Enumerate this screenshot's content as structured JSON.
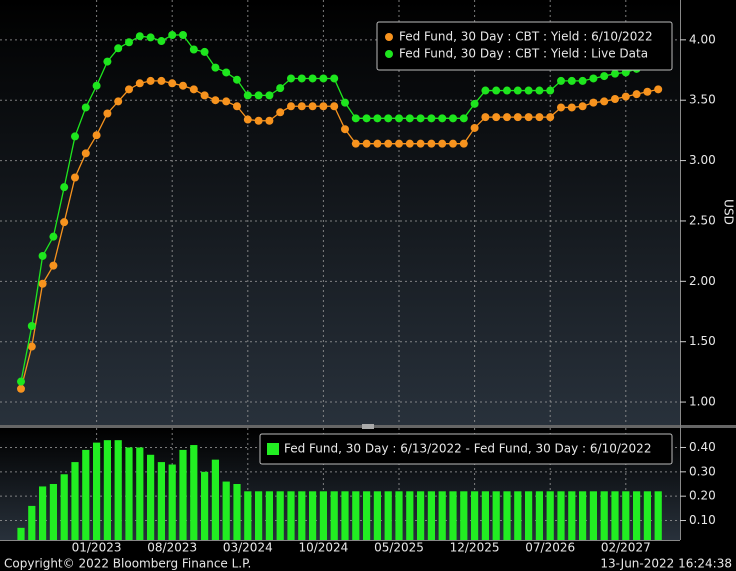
{
  "chart_data": [
    {
      "type": "line",
      "ylabel": "USD",
      "ylim": [
        0.81,
        4.33
      ],
      "yticks": [
        {
          "value": 1,
          "label": "1.00"
        },
        {
          "value": 1.5,
          "label": "1.50"
        },
        {
          "value": 2,
          "label": "2.00"
        },
        {
          "value": 2.5,
          "label": "2.50"
        },
        {
          "value": 3,
          "label": "3.00"
        },
        {
          "value": 3.5,
          "label": "3.50"
        },
        {
          "value": 4,
          "label": "4.00"
        }
      ],
      "grid": true,
      "legend": "top-right",
      "series": [
        {
          "name": "Fed Fund, 30 Day : CBT : Yield : 6/10/2022",
          "color": "#f7931e",
          "values": [
            1.11,
            1.46,
            1.98,
            2.13,
            2.49,
            2.86,
            3.06,
            3.21,
            3.39,
            3.49,
            3.59,
            3.64,
            3.66,
            3.66,
            3.64,
            3.62,
            3.59,
            3.54,
            3.5,
            3.49,
            3.45,
            3.34,
            3.33,
            3.33,
            3.4,
            3.45,
            3.45,
            3.45,
            3.45,
            3.45,
            3.26,
            3.14,
            3.14,
            3.14,
            3.14,
            3.14,
            3.14,
            3.14,
            3.14,
            3.14,
            3.14,
            3.14,
            3.27,
            3.36,
            3.36,
            3.36,
            3.36,
            3.36,
            3.36,
            3.36,
            3.44,
            3.44,
            3.45,
            3.48,
            3.49,
            3.51,
            3.53,
            3.55,
            3.57,
            3.59
          ]
        },
        {
          "name": "Fed Fund, 30 Day : CBT : Yield : Live Data",
          "color": "#1ee61e",
          "values": [
            1.17,
            1.63,
            2.21,
            2.37,
            2.78,
            3.2,
            3.44,
            3.62,
            3.82,
            3.93,
            3.98,
            4.03,
            4.02,
            3.99,
            4.04,
            4.04,
            3.92,
            3.9,
            3.77,
            3.73,
            3.67,
            3.54,
            3.54,
            3.54,
            3.6,
            3.68,
            3.68,
            3.68,
            3.68,
            3.68,
            3.48,
            3.35,
            3.35,
            3.35,
            3.35,
            3.35,
            3.35,
            3.35,
            3.35,
            3.35,
            3.35,
            3.35,
            3.47,
            3.58,
            3.58,
            3.58,
            3.58,
            3.58,
            3.58,
            3.58,
            3.66,
            3.66,
            3.66,
            3.68,
            3.7,
            3.72,
            3.73,
            3.76,
            3.79,
            3.81
          ]
        }
      ]
    },
    {
      "type": "bar",
      "categories": [
        null,
        null,
        null,
        null,
        null,
        null,
        null,
        "01/2023",
        null,
        null,
        null,
        null,
        null,
        null,
        "08/2023",
        null,
        null,
        null,
        null,
        null,
        null,
        "03/2024",
        null,
        null,
        null,
        null,
        null,
        null,
        "10/2024",
        null,
        null,
        null,
        null,
        null,
        null,
        "05/2025",
        null,
        null,
        null,
        null,
        null,
        null,
        "12/2025",
        null,
        null,
        null,
        null,
        null,
        null,
        "07/2026",
        null,
        null,
        null,
        null,
        null,
        null,
        "02/2027",
        null,
        null,
        null
      ],
      "ylim": [
        0.02,
        0.48
      ],
      "yticks": [
        {
          "value": 0.1,
          "label": "0.10"
        },
        {
          "value": 0.2,
          "label": "0.20"
        },
        {
          "value": 0.3,
          "label": "0.30"
        },
        {
          "value": 0.4,
          "label": "0.40"
        }
      ],
      "grid": true,
      "legend": "top-right",
      "series": [
        {
          "name": "Fed Fund, 30 Day : 6/13/2022 - Fed Fund, 30 Day : 6/10/2022",
          "color": "#22ee22",
          "values": [
            0.07,
            0.16,
            0.24,
            0.25,
            0.29,
            0.34,
            0.39,
            0.42,
            0.43,
            0.43,
            0.4,
            0.4,
            0.37,
            0.34,
            0.33,
            0.39,
            0.41,
            0.3,
            0.35,
            0.26,
            0.25,
            0.22,
            0.22,
            0.22,
            0.22,
            0.22,
            0.22,
            0.22,
            0.22,
            0.22,
            0.22,
            0.22,
            0.22,
            0.22,
            0.22,
            0.22,
            0.22,
            0.22,
            0.22,
            0.22,
            0.22,
            0.22,
            0.22,
            0.22,
            0.22,
            0.22,
            0.22,
            0.22,
            0.22,
            0.22,
            0.22,
            0.22,
            0.22,
            0.22,
            0.22,
            0.22,
            0.22,
            0.22,
            0.22,
            0.22
          ]
        }
      ]
    }
  ],
  "footer": {
    "copyright": "Copyright© 2022 Bloomberg Finance L.P.",
    "timestamp": "13-Jun-2022 16:24:38"
  }
}
